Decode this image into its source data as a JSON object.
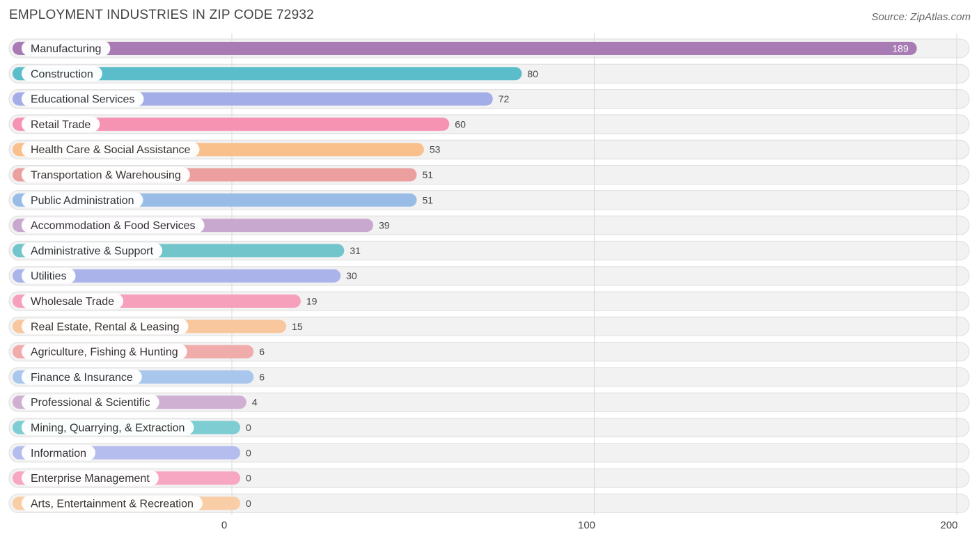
{
  "title": "EMPLOYMENT INDUSTRIES IN ZIP CODE 72932",
  "source": "Source: ZipAtlas.com",
  "chart_data": {
    "type": "bar",
    "orientation": "horizontal",
    "title": "EMPLOYMENT INDUSTRIES IN ZIP CODE 72932",
    "xlim": [
      0,
      200
    ],
    "ticks": [
      0,
      100,
      200
    ],
    "grid": true,
    "categories": [
      "Manufacturing",
      "Construction",
      "Educational Services",
      "Retail Trade",
      "Health Care & Social Assistance",
      "Transportation & Warehousing",
      "Public Administration",
      "Accommodation & Food Services",
      "Administrative & Support",
      "Utilities",
      "Wholesale Trade",
      "Real Estate, Rental & Leasing",
      "Agriculture, Fishing & Hunting",
      "Finance & Insurance",
      "Professional & Scientific",
      "Mining, Quarrying, & Extraction",
      "Information",
      "Enterprise Management",
      "Arts, Entertainment & Recreation"
    ],
    "values": [
      189,
      80,
      72,
      60,
      53,
      51,
      51,
      39,
      31,
      30,
      19,
      15,
      6,
      6,
      4,
      0,
      0,
      0,
      0
    ],
    "colors": [
      "#a87bb5",
      "#5bbdc9",
      "#a3aee8",
      "#f693b3",
      "#f9c08c",
      "#eb9f9f",
      "#98bce6",
      "#c9a8cf",
      "#73c5cc",
      "#aab3ea",
      "#f6a0bb",
      "#f9c79d",
      "#f0abab",
      "#a9c7ec",
      "#cfb0d3",
      "#7dcdd3",
      "#b5bdee",
      "#f7a7c1",
      "#f9cda6"
    ]
  }
}
